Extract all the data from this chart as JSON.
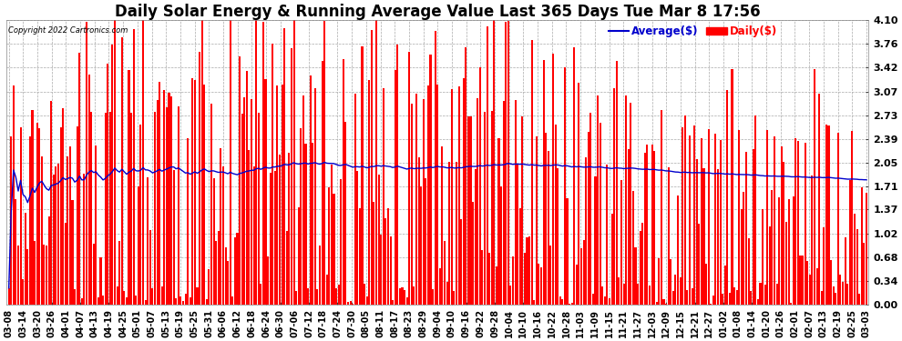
{
  "title": "Daily Solar Energy & Running Average Value Last 365 Days Tue Mar 8 17:56",
  "copyright": "Copyright 2022 Cartronics.com",
  "legend_avg": "Average($)",
  "legend_daily": "Daily($)",
  "ylim": [
    0.0,
    4.1
  ],
  "yticks": [
    0.0,
    0.34,
    0.68,
    1.02,
    1.37,
    1.71,
    2.05,
    2.39,
    2.73,
    3.07,
    3.42,
    3.76,
    4.1
  ],
  "bar_color": "#ff0000",
  "avg_color": "#0000cc",
  "daily_color": "#ff0000",
  "grid_color": "#aaaaaa",
  "background_color": "#ffffff",
  "title_fontsize": 12,
  "tick_fontsize": 7.5,
  "avg_linewidth": 1.0,
  "xtick_labels": [
    "03-08",
    "03-14",
    "03-20",
    "03-26",
    "04-01",
    "04-07",
    "04-13",
    "04-19",
    "04-25",
    "05-01",
    "05-07",
    "05-13",
    "05-19",
    "05-25",
    "05-31",
    "06-06",
    "06-12",
    "06-18",
    "06-24",
    "06-30",
    "07-06",
    "07-12",
    "07-18",
    "07-24",
    "07-30",
    "08-05",
    "08-11",
    "08-17",
    "08-23",
    "08-29",
    "09-04",
    "09-10",
    "09-16",
    "09-22",
    "09-28",
    "10-04",
    "10-10",
    "10-16",
    "10-22",
    "10-28",
    "11-03",
    "11-09",
    "11-15",
    "11-21",
    "11-27",
    "12-03",
    "12-09",
    "12-15",
    "12-21",
    "12-27",
    "01-02",
    "01-08",
    "01-14",
    "01-20",
    "01-26",
    "02-01",
    "02-07",
    "02-13",
    "02-19",
    "02-25",
    "03-03"
  ],
  "n_bars": 365,
  "target_avg": 1.8,
  "seed": 7
}
